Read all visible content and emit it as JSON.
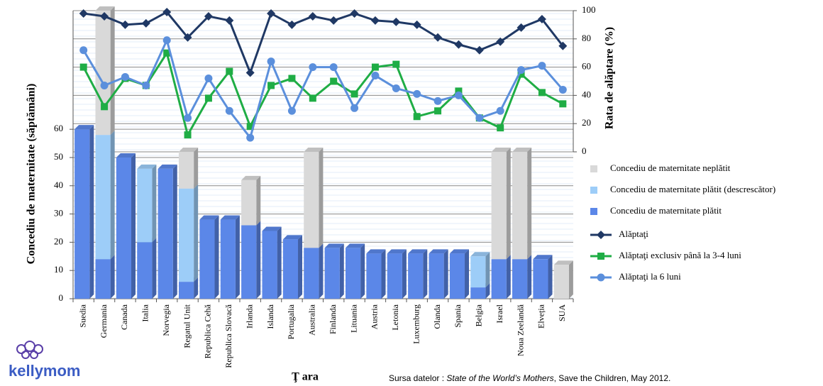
{
  "chart_data": {
    "type": "combo",
    "categories": [
      "Suedia",
      "Germania",
      "Canada",
      "Italia",
      "Norvegia",
      "Regatul Unit",
      "Republica Cehă",
      "Republica Slovacă",
      "Irlanda",
      "Islanda",
      "Portugalia",
      "Australia",
      "Finlanda",
      "Lituania",
      "Austria",
      "Letonia",
      "Luxemburg",
      "Olanda",
      "Spania",
      "Belgia",
      "Israel",
      "Noua Zeelandă",
      "Elveția",
      "SUA"
    ],
    "series": [
      {
        "name": "Concediu de maternitate neplătit",
        "type": "bar",
        "color": "#d9d9d9",
        "values": [
          0,
          44,
          0,
          0,
          0,
          13,
          0,
          0,
          16,
          0,
          0,
          34,
          0,
          0,
          0,
          0,
          0,
          0,
          0,
          0,
          38,
          38,
          0,
          12
        ]
      },
      {
        "name": "Concediu de maternitate plătit (descrescător)",
        "type": "bar",
        "color": "#9dcdf8",
        "values": [
          0,
          44,
          0,
          26,
          0,
          33,
          0,
          0,
          0,
          0,
          0,
          0,
          0,
          0,
          0,
          0,
          0,
          0,
          0,
          11,
          0,
          0,
          0,
          0
        ]
      },
      {
        "name": "Concediu de maternitate plătit",
        "type": "bar",
        "color": "#5b87e8",
        "values": [
          60,
          14,
          50,
          20,
          46,
          6,
          28,
          28,
          26,
          24,
          21,
          18,
          18,
          18,
          16,
          16,
          16,
          16,
          16,
          4,
          14,
          14,
          14,
          0
        ]
      },
      {
        "name": "Alăptaţi",
        "type": "line",
        "axis": "y2",
        "color": "#1f3864",
        "marker": "diamond",
        "values": [
          98,
          96,
          90,
          91,
          99,
          81,
          96,
          93,
          56,
          98,
          90,
          96,
          93,
          98,
          93,
          92,
          90,
          81,
          76,
          72,
          78,
          88,
          94,
          75
        ]
      },
      {
        "name": "Alăptaţi exclusiv până la 3-4 luni",
        "type": "line",
        "axis": "y2",
        "color": "#1fad45",
        "marker": "square",
        "values": [
          60,
          32,
          52,
          47,
          70,
          12,
          38,
          57,
          18,
          47,
          52,
          38,
          50,
          41,
          60,
          62,
          25,
          29,
          43,
          24,
          17,
          55,
          42,
          34
        ]
      },
      {
        "name": "Alăptaţi la 6 luni",
        "type": "line",
        "axis": "y2",
        "color": "#5b8fdc",
        "marker": "circle",
        "values": [
          72,
          47,
          53,
          47,
          79,
          24,
          52,
          29,
          10,
          64,
          29,
          60,
          60,
          31,
          54,
          45,
          41,
          36,
          40,
          24,
          29,
          58,
          61,
          44
        ]
      }
    ],
    "ylim": [
      0,
      102
    ],
    "yticks": [
      0,
      10,
      20,
      30,
      40,
      50,
      60
    ],
    "y2lim": [
      0,
      100
    ],
    "y2ticks": [
      0,
      20,
      40,
      60,
      80,
      100
    ],
    "ylabel": "Concediu de maternitate (săptămâni)",
    "y2label": "Rata de alăptare  (%)",
    "xlabel": "Ţ ara",
    "grid": true,
    "legend": "right"
  },
  "source": {
    "prefix": "Sursa datelor :",
    "title": "State of the World’s Mothers",
    "rest": ", Save the Children, May 2012."
  },
  "logo": {
    "text": "kellymom"
  }
}
